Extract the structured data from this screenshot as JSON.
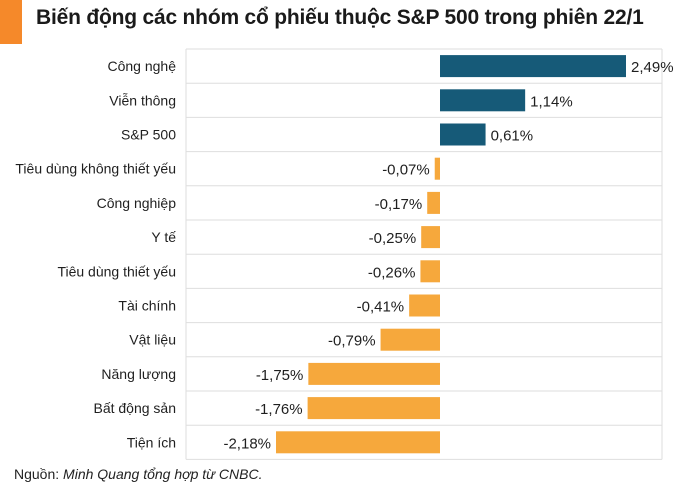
{
  "colors": {
    "accent": "#f5892a",
    "positive": "#165a78",
    "negative": "#f6a83c",
    "grid": "#dedede"
  },
  "source": {
    "prefix": "Nguồn:",
    "text": "Minh Quang tổng hợp từ CNBC."
  },
  "chart_data": {
    "type": "bar",
    "orientation": "horizontal",
    "title": "Biến động các nhóm cổ phiếu thuộc S&P 500 trong phiên 22/1",
    "categories": [
      "Công nghệ",
      "Viễn thông",
      "S&P 500",
      "Tiêu dùng không thiết yếu",
      "Công nghiệp",
      "Y tế",
      "Tiêu dùng thiết yếu",
      "Tài chính",
      "Vật liệu",
      "Năng lượng",
      "Bất động sản",
      "Tiện ích"
    ],
    "values": [
      2.49,
      1.14,
      0.61,
      -0.07,
      -0.17,
      -0.25,
      -0.26,
      -0.41,
      -0.79,
      -1.75,
      -1.76,
      -2.18
    ],
    "value_labels": [
      "2,49%",
      "1,14%",
      "0,61%",
      "-0,07%",
      "-0,17%",
      "-0,25%",
      "-0,26%",
      "-0,41%",
      "-0,79%",
      "-1,75%",
      "-1,76%",
      "-2,18%"
    ],
    "unit": "%",
    "xlabel": "",
    "ylabel": "",
    "xlim": [
      -2.18,
      2.49
    ],
    "grid": true,
    "legend": "none"
  }
}
